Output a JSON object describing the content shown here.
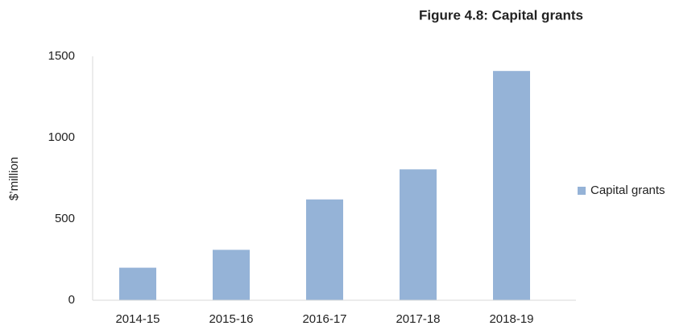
{
  "chart_data": {
    "type": "bar",
    "title": "Figure 4.8: Capital grants",
    "y_label": "$’million",
    "categories": [
      "2014-15",
      "2015-16",
      "2016-17",
      "2017-18",
      "2018-19"
    ],
    "series": [
      {
        "name": "Capital grants",
        "color": "#95b3d7",
        "values": [
          200,
          310,
          620,
          805,
          1410
        ]
      }
    ],
    "ylim": [
      0,
      1500
    ],
    "yticks": [
      0,
      500,
      1000,
      1500
    ],
    "grid": false,
    "legend": "right"
  }
}
